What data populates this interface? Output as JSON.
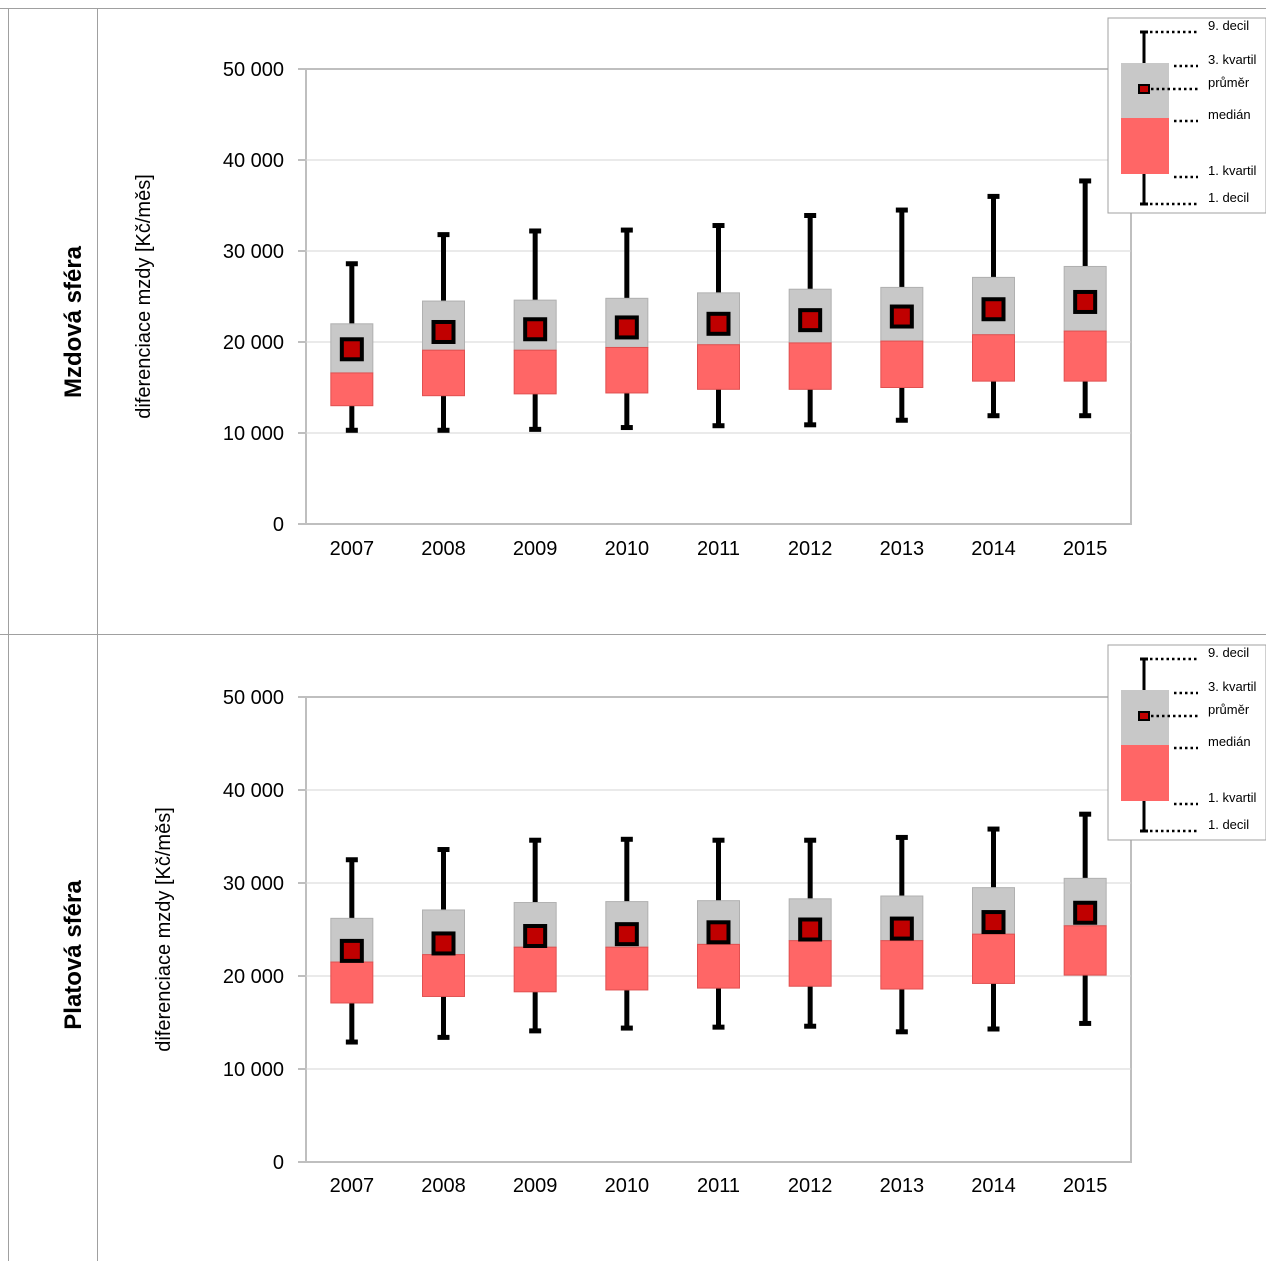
{
  "chart_data": [
    {
      "type": "box",
      "row_label": "Mzdová sféra",
      "ylabel": "diferenciace mzdy [Kč/měs]",
      "ylim": [
        0,
        50000
      ],
      "yticks": [
        0,
        10000,
        20000,
        30000,
        40000,
        50000
      ],
      "ytick_labels": [
        "0",
        "10 000",
        "20 000",
        "30 000",
        "40 000",
        "50 000"
      ],
      "categories": [
        "2007",
        "2008",
        "2009",
        "2010",
        "2011",
        "2012",
        "2013",
        "2014",
        "2015"
      ],
      "decile1": [
        10300,
        10300,
        10400,
        10600,
        10800,
        10900,
        11400,
        11900,
        11900
      ],
      "quartile1": [
        13000,
        14100,
        14300,
        14400,
        14800,
        14800,
        15000,
        15700,
        15700
      ],
      "median": [
        16600,
        19100,
        19100,
        19400,
        19700,
        19900,
        20100,
        20800,
        21200
      ],
      "quartile3": [
        22000,
        24500,
        24600,
        24800,
        25400,
        25800,
        26000,
        27100,
        28300
      ],
      "decile9": [
        28600,
        31800,
        32200,
        32300,
        32800,
        33900,
        34500,
        36000,
        37700
      ],
      "mean": [
        19200,
        21100,
        21400,
        21600,
        22000,
        22400,
        22800,
        23600,
        24400
      ],
      "grid": true,
      "legend": {
        "position": "top-right",
        "labels": [
          "9. decil",
          "3. kvartil",
          "průměr",
          "medián",
          "1. kvartil",
          "1. decil"
        ]
      }
    },
    {
      "type": "box",
      "row_label": "Platová sféra",
      "ylabel": "diferenciace mzdy [Kč/měs]",
      "ylim": [
        0,
        50000
      ],
      "yticks": [
        0,
        10000,
        20000,
        30000,
        40000,
        50000
      ],
      "ytick_labels": [
        "0",
        "10 000",
        "20 000",
        "30 000",
        "40 000",
        "50 000"
      ],
      "categories": [
        "2007",
        "2008",
        "2009",
        "2010",
        "2011",
        "2012",
        "2013",
        "2014",
        "2015"
      ],
      "decile1": [
        12900,
        13400,
        14100,
        14400,
        14500,
        14600,
        14000,
        14300,
        14900
      ],
      "quartile1": [
        17100,
        17800,
        18300,
        18500,
        18700,
        18900,
        18600,
        19200,
        20100
      ],
      "median": [
        21500,
        22300,
        23100,
        23100,
        23400,
        23800,
        23800,
        24500,
        25400
      ],
      "quartile3": [
        26200,
        27100,
        27900,
        28000,
        28100,
        28300,
        28600,
        29500,
        30500
      ],
      "decile9": [
        32500,
        33600,
        34600,
        34700,
        34600,
        34600,
        34900,
        35800,
        37400
      ],
      "mean": [
        22700,
        23500,
        24300,
        24500,
        24700,
        25000,
        25100,
        25800,
        26800
      ],
      "grid": true,
      "legend": {
        "position": "top-right",
        "labels": [
          "9. decil",
          "3. kvartil",
          "průměr",
          "medián",
          "1. kvartil",
          "1. decil"
        ]
      }
    }
  ],
  "colors": {
    "upper_box": "#c8c8c8",
    "lower_box": "#ff6666",
    "whisker": "#000000",
    "mean_marker": "#c00000",
    "grid": "#d4d4d4",
    "frame": "#bfbfbf"
  }
}
